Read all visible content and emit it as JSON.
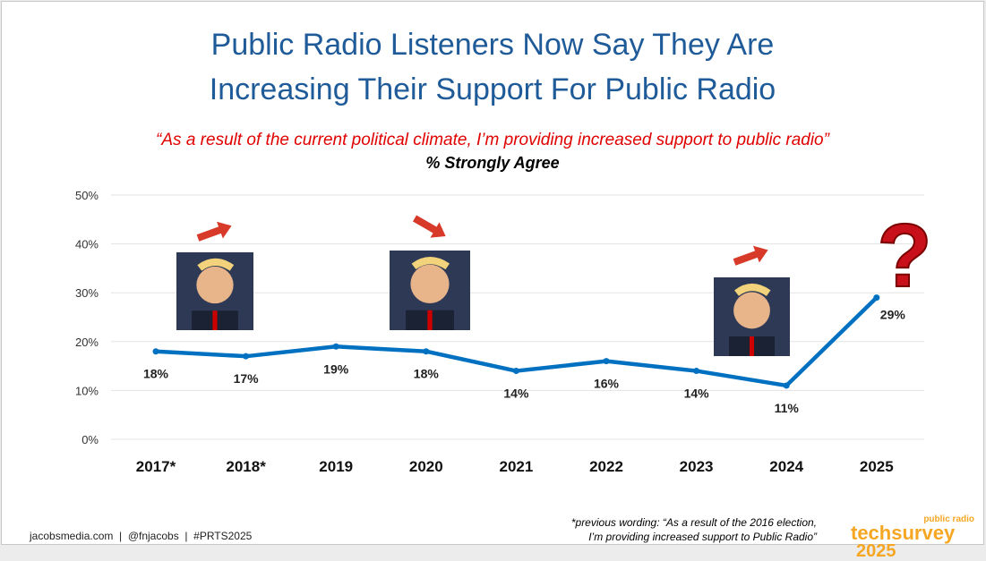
{
  "title_line1": "Public Radio Listeners Now Say They Are",
  "title_line2": "Increasing Their Support For Public Radio",
  "quote": "“As a result of the current political climate, I’m providing increased support to public radio”",
  "subtitle": "% Strongly Agree",
  "footer": {
    "left": "jacobsmedia.com  |  @fnjacobs  |  #PRTS2025",
    "note_line1": "*previous wording: “As a result of the 2016 election,",
    "note_line2": "I’m providing increased support to Public Radio”"
  },
  "logo": {
    "small": "public radio",
    "main": "techsurvey",
    "year": "2025"
  },
  "colors": {
    "line": "#0070c0",
    "title": "#1f5b99",
    "accent": "#e00000"
  },
  "chart_data": {
    "type": "line",
    "categories": [
      "2017*",
      "2018*",
      "2019",
      "2020",
      "2021",
      "2022",
      "2023",
      "2024",
      "2025"
    ],
    "values": [
      18,
      17,
      19,
      18,
      14,
      16,
      14,
      11,
      29
    ],
    "data_labels": [
      "18%",
      "17%",
      "19%",
      "18%",
      "14%",
      "16%",
      "14%",
      "11%",
      "29%"
    ],
    "yticks": [
      "0%",
      "10%",
      "20%",
      "30%",
      "40%",
      "50%"
    ],
    "ylim": [
      0,
      50
    ],
    "grid": true,
    "annotations": [
      "photo over 2017*-2018*",
      "photo over 2020",
      "photo over 2023-2024",
      "question mark over 2025"
    ]
  }
}
